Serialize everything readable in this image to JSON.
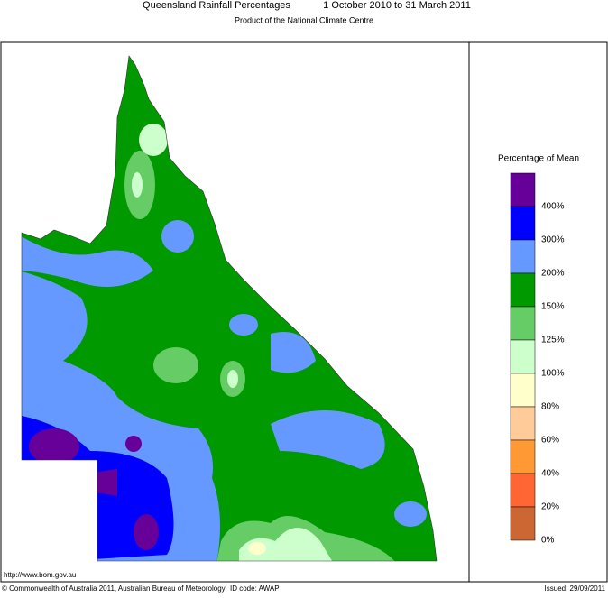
{
  "header": {
    "title": "Queensland Rainfall Percentages",
    "period": "1 October 2010 to 31 March 2011",
    "subtitle": "Product of the National Climate Centre"
  },
  "legend": {
    "title": "Percentage of Mean",
    "entries": [
      {
        "label": "400%",
        "color": "#660099"
      },
      {
        "label": "300%",
        "color": "#0000ff"
      },
      {
        "label": "200%",
        "color": "#6699ff"
      },
      {
        "label": "150%",
        "color": "#009900"
      },
      {
        "label": "125%",
        "color": "#66cc66"
      },
      {
        "label": "100%",
        "color": "#ccffcc"
      },
      {
        "label": "80%",
        "color": "#ffffcc"
      },
      {
        "label": "60%",
        "color": "#ffcc99"
      },
      {
        "label": "40%",
        "color": "#ff9933"
      },
      {
        "label": "20%",
        "color": "#ff6633"
      },
      {
        "label": "0%",
        "color": "#cc6633"
      }
    ]
  },
  "footer": {
    "url": "http://www.bom.gov.au",
    "copyright": "© Commonwealth of Australia 2011, Australian Bureau of Meteorology",
    "id_code": "ID code: AWAP",
    "issued": "Issued: 29/09/2011"
  }
}
